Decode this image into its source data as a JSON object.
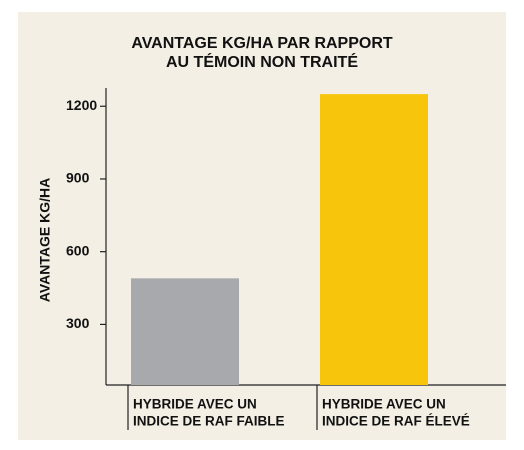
{
  "chart_data": {
    "type": "bar",
    "title": [
      "AVANTAGE KG/HA PAR RAPPORT",
      "AU TÉMOIN NON TRAITÉ"
    ],
    "y_label": "AVANTAGE KG/HA",
    "categories": [
      [
        "HYBRIDE AVEC UN",
        "INDICE DE RAF FAIBLE"
      ],
      [
        "HYBRIDE AVEC UN",
        "INDICE DE RAF ÉLEVÉ"
      ]
    ],
    "values": [
      490,
      1250
    ],
    "colors": [
      "#a7a9ac",
      "#f7c50b"
    ],
    "ylim": [
      50,
      1300
    ],
    "yticks": [
      300,
      600,
      900,
      1200
    ],
    "grid": false
  }
}
